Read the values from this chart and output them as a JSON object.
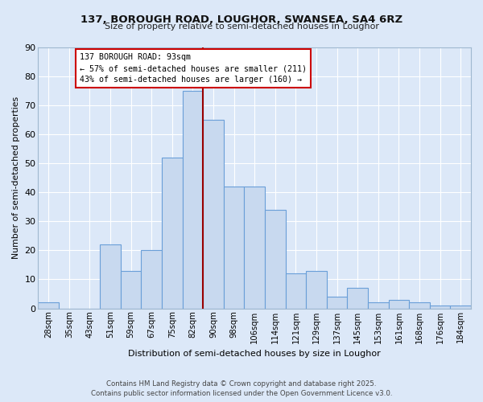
{
  "title1": "137, BOROUGH ROAD, LOUGHOR, SWANSEA, SA4 6RZ",
  "title2": "Size of property relative to semi-detached houses in Loughor",
  "xlabel": "Distribution of semi-detached houses by size in Loughor",
  "ylabel": "Number of semi-detached properties",
  "bin_labels": [
    "28sqm",
    "35sqm",
    "43sqm",
    "51sqm",
    "59sqm",
    "67sqm",
    "75sqm",
    "82sqm",
    "90sqm",
    "98sqm",
    "106sqm",
    "114sqm",
    "121sqm",
    "129sqm",
    "137sqm",
    "145sqm",
    "153sqm",
    "161sqm",
    "168sqm",
    "176sqm",
    "184sqm"
  ],
  "bar_values": [
    2,
    0,
    0,
    22,
    13,
    20,
    52,
    75,
    65,
    42,
    42,
    34,
    12,
    13,
    4,
    7,
    2,
    3,
    2,
    1,
    1
  ],
  "bar_color": "#c8d9ef",
  "bar_edge_color": "#6a9fd8",
  "vline_color": "#990000",
  "annotation_title": "137 BOROUGH ROAD: 93sqm",
  "annotation_line1": "← 57% of semi-detached houses are smaller (211)",
  "annotation_line2": "43% of semi-detached houses are larger (160) →",
  "annotation_box_color": "#cc0000",
  "ylim": [
    0,
    90
  ],
  "yticks": [
    0,
    10,
    20,
    30,
    40,
    50,
    60,
    70,
    80,
    90
  ],
  "footer1": "Contains HM Land Registry data © Crown copyright and database right 2025.",
  "footer2": "Contains public sector information licensed under the Open Government Licence v3.0.",
  "bg_color": "#dce8f8"
}
